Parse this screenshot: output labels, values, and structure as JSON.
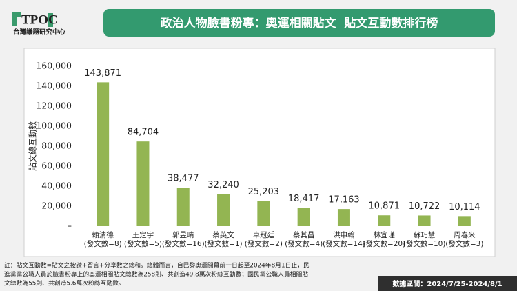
{
  "header": {
    "logo": "TPOC",
    "org": "台灣議題研究中心"
  },
  "chart_data": {
    "type": "bar",
    "title": "政治人物臉書粉專：奧運相關貼文  貼文互動數排行榜",
    "y_label": "貼文總互動數",
    "categories": [
      [
        "賴清德",
        "(發文數=8)"
      ],
      [
        "王定宇",
        "(發文數=5)"
      ],
      [
        "郭昱晴",
        "(發文數=16)"
      ],
      [
        "蔡英文",
        "(發文數=1)"
      ],
      [
        "卓冠廷",
        "(發文數=2)"
      ],
      [
        "蔡其昌",
        "(發文數=4)"
      ],
      [
        "洪申翰",
        "(發文數=14)"
      ],
      [
        "林宜瑾",
        "(發文數=20)"
      ],
      [
        "蘇巧慧",
        "(發文數=10)"
      ],
      [
        "周春米",
        "(發文數=3)"
      ]
    ],
    "values": [
      143871,
      84704,
      38477,
      32240,
      25203,
      18417,
      17163,
      10871,
      10722,
      10114
    ],
    "value_labels": [
      "143,871",
      "84,704",
      "38,477",
      "32,240",
      "25,203",
      "18,417",
      "17,163",
      "10,871",
      "10,722",
      "10,114"
    ],
    "color": "#93b552",
    "ylim": [
      0,
      160000
    ],
    "yticks": [
      {
        "value": 0,
        "label": "–"
      },
      {
        "value": 20000,
        "label": "20,000"
      },
      {
        "value": 40000,
        "label": "40,000"
      },
      {
        "value": 60000,
        "label": "60,000"
      },
      {
        "value": 80000,
        "label": "80,000"
      },
      {
        "value": 100000,
        "label": "100,000"
      },
      {
        "value": 120000,
        "label": "120,000"
      },
      {
        "value": 140000,
        "label": "140,000"
      },
      {
        "value": 160000,
        "label": "160,000"
      }
    ],
    "grid": false
  },
  "footer": {
    "note_lines": [
      "註：貼文互動數=貼文之按讚+留言+分享數之總和。總體而言，自巴黎奧運開幕前一日起至2024年8月1日止，民",
      "進黨黨公職人員於臉書粉專上的奧運相關貼文總數為258則、共創造49.8萬次粉絲互動數；國民黨公職人員相關貼",
      "文總數為55則、共創造5.6萬次粉絲互動數。"
    ],
    "range": "數據區間：2024/7/25-2024/8/1"
  }
}
